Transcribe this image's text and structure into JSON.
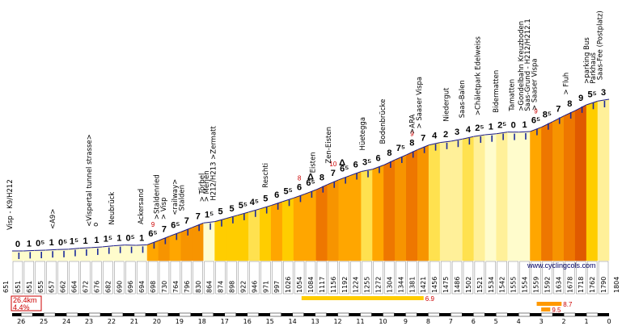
{
  "chart_data": {
    "type": "area",
    "title": "",
    "xlabel": "",
    "ylabel": "",
    "start_altitude": 651,
    "end_altitude": 1804,
    "ylim": [
      600,
      1820
    ],
    "xlim": [
      26.4,
      0
    ],
    "site": "www.cyclingcols.com",
    "summary": {
      "distance": "26.4km",
      "average_gradient": "4.4%"
    },
    "km_ticks": [
      "26",
      "25",
      "24",
      "23",
      "22",
      "21",
      "20",
      "19",
      "18",
      "17",
      "16",
      "15",
      "14",
      "13",
      "12",
      "11",
      "10",
      "9",
      "8",
      "7",
      "6",
      "5",
      "4",
      "3",
      "2",
      "1",
      "0"
    ],
    "segments": [
      {
        "grade_label": "0",
        "gradient": 0.0,
        "altitude": 651
      },
      {
        "grade_label": "1",
        "gradient": 1.0,
        "altitude": 651
      },
      {
        "grade_label": "0⁵",
        "gradient": 0.5,
        "altitude": 655
      },
      {
        "grade_label": "1",
        "gradient": 1.0,
        "altitude": 657
      },
      {
        "grade_label": "0⁵",
        "gradient": 0.5,
        "altitude": 662
      },
      {
        "grade_label": "1⁵",
        "gradient": 1.5,
        "altitude": 664
      },
      {
        "grade_label": "1",
        "gradient": 1.0,
        "altitude": 672
      },
      {
        "grade_label": "1",
        "gradient": 1.0,
        "altitude": 676
      },
      {
        "grade_label": "1⁵",
        "gradient": 1.5,
        "altitude": 682
      },
      {
        "grade_label": "1",
        "gradient": 1.0,
        "altitude": 690
      },
      {
        "grade_label": "0⁵",
        "gradient": 0.5,
        "altitude": 696
      },
      {
        "grade_label": "1",
        "gradient": 1.0,
        "altitude": 694
      },
      {
        "grade_label": "6⁵",
        "gradient": 6.5,
        "altitude": 698,
        "max": "9"
      },
      {
        "grade_label": "7",
        "gradient": 7.0,
        "altitude": 730
      },
      {
        "grade_label": "6⁵",
        "gradient": 6.5,
        "altitude": 764
      },
      {
        "grade_label": "7",
        "gradient": 7.0,
        "altitude": 796
      },
      {
        "grade_label": "7",
        "gradient": 7.0,
        "altitude": 830
      },
      {
        "grade_label": "1⁵",
        "gradient": 1.5,
        "altitude": 864
      },
      {
        "grade_label": "5",
        "gradient": 5.0,
        "altitude": 874
      },
      {
        "grade_label": "5",
        "gradient": 5.0,
        "altitude": 898
      },
      {
        "grade_label": "5⁵",
        "gradient": 5.5,
        "altitude": 922
      },
      {
        "grade_label": "4⁵",
        "gradient": 4.5,
        "altitude": 946
      },
      {
        "grade_label": "5",
        "gradient": 5.0,
        "altitude": 971
      },
      {
        "grade_label": "6",
        "gradient": 6.0,
        "altitude": 997
      },
      {
        "grade_label": "5⁵",
        "gradient": 5.5,
        "altitude": 1026
      },
      {
        "grade_label": "6",
        "gradient": 6.0,
        "altitude": 1054,
        "max": "8"
      },
      {
        "grade_label": "6⁵",
        "gradient": 6.5,
        "altitude": 1084
      },
      {
        "grade_label": "8",
        "gradient": 8.0,
        "altitude": 1117
      },
      {
        "grade_label": "7",
        "gradient": 7.0,
        "altitude": 1156,
        "max": "10"
      },
      {
        "grade_label": "6⁵",
        "gradient": 6.5,
        "altitude": 1192
      },
      {
        "grade_label": "6",
        "gradient": 6.0,
        "altitude": 1224
      },
      {
        "grade_label": "3⁵",
        "gradient": 3.5,
        "altitude": 1255
      },
      {
        "grade_label": "6",
        "gradient": 6.0,
        "altitude": 1272
      },
      {
        "grade_label": "8",
        "gradient": 8.0,
        "altitude": 1304
      },
      {
        "grade_label": "7⁵",
        "gradient": 7.5,
        "altitude": 1344
      },
      {
        "grade_label": "8",
        "gradient": 8.0,
        "altitude": 1381,
        "max": "9"
      },
      {
        "grade_label": "7",
        "gradient": 7.0,
        "altitude": 1421
      },
      {
        "grade_label": "4",
        "gradient": 4.0,
        "altitude": 1456
      },
      {
        "grade_label": "2",
        "gradient": 2.0,
        "altitude": 1475
      },
      {
        "grade_label": "3",
        "gradient": 3.0,
        "altitude": 1486
      },
      {
        "grade_label": "4",
        "gradient": 4.0,
        "altitude": 1502
      },
      {
        "grade_label": "2⁵",
        "gradient": 2.5,
        "altitude": 1521
      },
      {
        "grade_label": "1",
        "gradient": 1.0,
        "altitude": 1534
      },
      {
        "grade_label": "2⁵",
        "gradient": 2.5,
        "altitude": 1542
      },
      {
        "grade_label": "0",
        "gradient": 0.0,
        "altitude": 1555
      },
      {
        "grade_label": "1",
        "gradient": 1.0,
        "altitude": 1554
      },
      {
        "grade_label": "6⁵",
        "gradient": 6.5,
        "altitude": 1559,
        "max": "9"
      },
      {
        "grade_label": "8⁵",
        "gradient": 8.5,
        "altitude": 1592
      },
      {
        "grade_label": "7",
        "gradient": 7.0,
        "altitude": 1634
      },
      {
        "grade_label": "8",
        "gradient": 8.0,
        "altitude": 1678
      },
      {
        "grade_label": "9",
        "gradient": 9.0,
        "altitude": 1718
      },
      {
        "grade_label": "5⁵",
        "gradient": 5.5,
        "altitude": 1762
      },
      {
        "grade_label": "3",
        "gradient": 3.0,
        "altitude": 1790
      }
    ],
    "places": [
      {
        "label": "Visp - K9/H212",
        "km": 26.4
      },
      {
        "label": "<A9>",
        "km": 24.5
      },
      {
        "label": "<Vispertal tunnel strasse>",
        "km": 22.9
      },
      {
        "label": "o",
        "km": 22.6
      },
      {
        "label": "Neubrück",
        "km": 21.9
      },
      {
        "label": "Ackersand",
        "km": 20.6
      },
      {
        "label": ">Staldenried",
        "km": 19.9
      },
      {
        "label": "> Visp",
        "km": 19.6
      },
      {
        "label": "<railway>",
        "km": 19.1
      },
      {
        "label": "Stalden",
        "km": 18.8
      },
      {
        "label": "> Törbel",
        "km": 17.9
      },
      {
        "label": "> Merjen",
        "km": 17.7
      },
      {
        "label": "H212/H213 >Zermatt",
        "km": 17.4
      },
      {
        "label": "Reschti",
        "km": 15.1
      },
      {
        "label": "Eisten",
        "km": 13.0
      },
      {
        "label": "Zen-Eisten",
        "km": 12.3
      },
      {
        "label": "Hüetegga",
        "km": 10.8
      },
      {
        "label": "Bodenbrücke",
        "km": 9.9
      },
      {
        "label": ">ARA",
        "km": 8.6
      },
      {
        "label": "> Saaser Vispa",
        "km": 8.3
      },
      {
        "label": "Niedergut",
        "km": 7.1
      },
      {
        "label": "Saas-Balen",
        "km": 6.4
      },
      {
        "label": ">Chäletpark Edelweiss",
        "km": 5.7
      },
      {
        "label": "Bidermatten",
        "km": 4.9
      },
      {
        "label": "Tamatten",
        "km": 4.2
      },
      {
        "label": ">Gondelbahn Kreuzboden",
        "km": 3.8
      },
      {
        "label": "Saas-Grund - H212/H212.1",
        "km": 3.5
      },
      {
        "label": "> Saaser Vispa",
        "km": 3.2
      },
      {
        "label": "> Fluh",
        "km": 1.8
      },
      {
        "label": ">parking Bus",
        "km": 0.9
      },
      {
        "label": "Parkhaus",
        "km": 0.6
      },
      {
        "label": "Saas-Fee (Postplatz)",
        "km": 0.3
      }
    ],
    "markers": [
      {
        "label": "Δ",
        "km": 13.2
      },
      {
        "label": "Δ",
        "km": 11.8
      }
    ],
    "steep_bars": [
      {
        "label": "6.9",
        "km_from": 13.6,
        "km_to": 8.2
      },
      {
        "label": "8.7",
        "km_from": 3.2,
        "km_to": 2.1
      },
      {
        "label": "9.5",
        "km_from": 3.0,
        "km_to": 2.6
      }
    ]
  }
}
